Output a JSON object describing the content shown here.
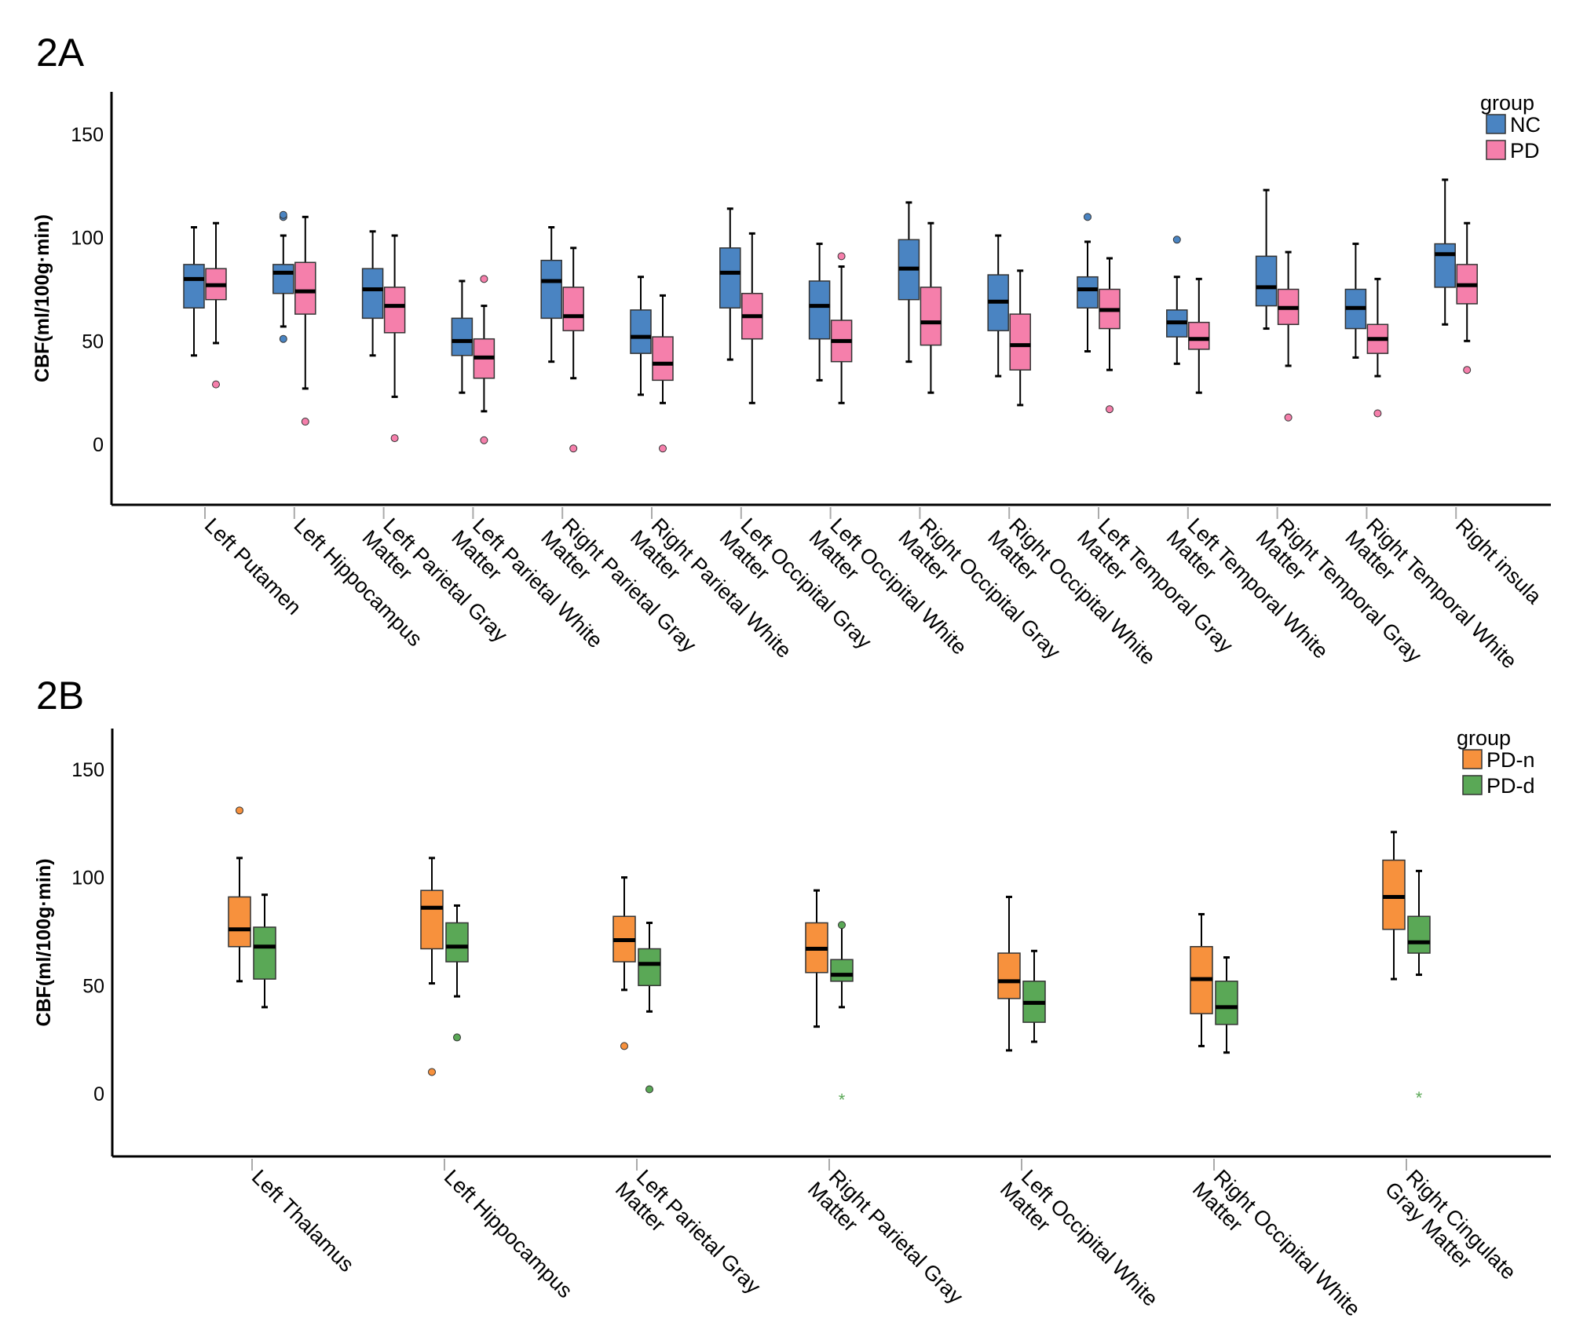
{
  "chart_data": [
    {
      "type": "box",
      "panel_label": "2A",
      "ylabel": "CBF(ml/100g·min)",
      "xlabel": "",
      "ylim": [
        -28,
        170
      ],
      "yticks": [
        0,
        50,
        100,
        150
      ],
      "legend": {
        "title": "group",
        "position": "top-right"
      },
      "series": [
        {
          "name": "NC",
          "color": "#4a84c2"
        },
        {
          "name": "PD",
          "color": "#f57fab"
        }
      ],
      "categories": [
        "Left Putamen",
        "Left Hippocampus",
        "Left Parietal Gray Matter",
        "Left Parietal White Matter",
        "Right Parietal Gray Matter",
        "Right Parietal White Matter",
        "Left Occipital Gray Matter",
        "Left Occipital White Matter",
        "Right Occipital Gray Matter",
        "Right Occipital White Matter",
        "Left Temporal Gray Matter",
        "Left Temporal White Matter",
        "Right Temporal Gray Matter",
        "Right Temporal White Matter",
        "Right insula"
      ],
      "label_lines": [
        [
          "Left Putamen"
        ],
        [
          "Left Hippocampus"
        ],
        [
          "Left Parietal Gray",
          "Matter"
        ],
        [
          "Left Parietal White",
          "Matter"
        ],
        [
          "Right Parietal Gray",
          "Matter"
        ],
        [
          "Right Parietal White",
          "Matter"
        ],
        [
          "Left Occipital Gray",
          "Matter"
        ],
        [
          "Left Occipital White",
          "Matter"
        ],
        [
          "Right Occipital Gray",
          "Matter"
        ],
        [
          "Right Occipital White",
          "Matter"
        ],
        [
          "Left Temporal Gray",
          "Matter"
        ],
        [
          "Left Temporal White",
          "Matter"
        ],
        [
          "Right Temporal Gray",
          "Matter"
        ],
        [
          "Right Temporal White",
          "Matter"
        ],
        [
          "Right insula"
        ]
      ],
      "boxes": [
        [
          {
            "min": 43,
            "q1": 66,
            "median": 80,
            "q3": 87,
            "max": 105,
            "outliers": []
          },
          {
            "min": 49,
            "q1": 70,
            "median": 77,
            "q3": 85,
            "max": 107,
            "outliers": [
              29
            ]
          }
        ],
        [
          {
            "min": 57,
            "q1": 73,
            "median": 83,
            "q3": 87,
            "max": 101,
            "outliers": [
              110,
              111,
              51
            ]
          },
          {
            "min": 27,
            "q1": 63,
            "median": 74,
            "q3": 88,
            "max": 110,
            "outliers": [
              11
            ]
          }
        ],
        [
          {
            "min": 43,
            "q1": 61,
            "median": 75,
            "q3": 85,
            "max": 103,
            "outliers": []
          },
          {
            "min": 23,
            "q1": 54,
            "median": 67,
            "q3": 76,
            "max": 101,
            "outliers": [
              3
            ]
          }
        ],
        [
          {
            "min": 25,
            "q1": 43,
            "median": 50,
            "q3": 61,
            "max": 79,
            "outliers": []
          },
          {
            "min": 16,
            "q1": 32,
            "median": 42,
            "q3": 51,
            "max": 67,
            "outliers": [
              80,
              2
            ]
          }
        ],
        [
          {
            "min": 40,
            "q1": 61,
            "median": 79,
            "q3": 89,
            "max": 105,
            "outliers": []
          },
          {
            "min": 32,
            "q1": 55,
            "median": 62,
            "q3": 76,
            "max": 95,
            "outliers": [
              -2
            ]
          }
        ],
        [
          {
            "min": 24,
            "q1": 44,
            "median": 52,
            "q3": 65,
            "max": 81,
            "outliers": []
          },
          {
            "min": 20,
            "q1": 31,
            "median": 39,
            "q3": 52,
            "max": 72,
            "outliers": [
              -2
            ]
          }
        ],
        [
          {
            "min": 41,
            "q1": 66,
            "median": 83,
            "q3": 95,
            "max": 114,
            "outliers": []
          },
          {
            "min": 20,
            "q1": 51,
            "median": 62,
            "q3": 73,
            "max": 102,
            "outliers": []
          }
        ],
        [
          {
            "min": 31,
            "q1": 51,
            "median": 67,
            "q3": 79,
            "max": 97,
            "outliers": []
          },
          {
            "min": 20,
            "q1": 40,
            "median": 50,
            "q3": 60,
            "max": 86,
            "outliers": [
              91
            ]
          }
        ],
        [
          {
            "min": 40,
            "q1": 70,
            "median": 85,
            "q3": 99,
            "max": 117,
            "outliers": []
          },
          {
            "min": 25,
            "q1": 48,
            "median": 59,
            "q3": 76,
            "max": 107,
            "outliers": []
          }
        ],
        [
          {
            "min": 33,
            "q1": 55,
            "median": 69,
            "q3": 82,
            "max": 101,
            "outliers": []
          },
          {
            "min": 19,
            "q1": 36,
            "median": 48,
            "q3": 63,
            "max": 84,
            "outliers": []
          }
        ],
        [
          {
            "min": 45,
            "q1": 66,
            "median": 75,
            "q3": 81,
            "max": 98,
            "outliers": [
              110
            ]
          },
          {
            "min": 36,
            "q1": 56,
            "median": 65,
            "q3": 75,
            "max": 90,
            "outliers": [
              17
            ]
          }
        ],
        [
          {
            "min": 39,
            "q1": 52,
            "median": 59,
            "q3": 65,
            "max": 81,
            "outliers": [
              99
            ]
          },
          {
            "min": 25,
            "q1": 46,
            "median": 51,
            "q3": 59,
            "max": 80,
            "outliers": []
          }
        ],
        [
          {
            "min": 56,
            "q1": 67,
            "median": 76,
            "q3": 91,
            "max": 123,
            "outliers": []
          },
          {
            "min": 38,
            "q1": 58,
            "median": 66,
            "q3": 75,
            "max": 93,
            "outliers": [
              13
            ]
          }
        ],
        [
          {
            "min": 42,
            "q1": 56,
            "median": 66,
            "q3": 75,
            "max": 97,
            "outliers": []
          },
          {
            "min": 33,
            "q1": 44,
            "median": 51,
            "q3": 58,
            "max": 80,
            "outliers": [
              15
            ]
          }
        ],
        [
          {
            "min": 58,
            "q1": 76,
            "median": 92,
            "q3": 97,
            "max": 128,
            "outliers": []
          },
          {
            "min": 50,
            "q1": 68,
            "median": 77,
            "q3": 87,
            "max": 107,
            "outliers": [
              36
            ]
          }
        ]
      ]
    },
    {
      "type": "box",
      "panel_label": "2B",
      "ylabel": "CBF(ml/100g·min)",
      "xlabel": "",
      "ylim": [
        -23,
        175
      ],
      "yticks": [
        0,
        50,
        100,
        150
      ],
      "legend": {
        "title": "group",
        "position": "top-right"
      },
      "series": [
        {
          "name": "PD-n",
          "color": "#f7913d"
        },
        {
          "name": "PD-d",
          "color": "#5aa856"
        }
      ],
      "categories": [
        "Left Thalamus",
        "Left Hippocampus",
        "Left Parietal Gray Matter",
        "Right Parietal Gray Matter",
        "Left Occipital White Matter",
        "Right Occipital White Matter",
        "Right Cingulate Gray Matter"
      ],
      "label_lines": [
        [
          "Left Thalamus"
        ],
        [
          "Left Hippocampus"
        ],
        [
          "Left Parietal Gray",
          "Matter"
        ],
        [
          "Right Parietal Gray",
          "Matter"
        ],
        [
          "Left Occipital White",
          "Matter"
        ],
        [
          "Right Occipital White",
          "Matter"
        ],
        [
          "Right Cingulate",
          "Gray Matter"
        ]
      ],
      "boxes": [
        [
          {
            "min": 52,
            "q1": 68,
            "median": 76,
            "q3": 91,
            "max": 109,
            "outliers": [
              131
            ]
          },
          {
            "min": 40,
            "q1": 53,
            "median": 68,
            "q3": 77,
            "max": 92,
            "outliers": []
          }
        ],
        [
          {
            "min": 51,
            "q1": 67,
            "median": 86,
            "q3": 94,
            "max": 109,
            "outliers": [
              10
            ]
          },
          {
            "min": 45,
            "q1": 61,
            "median": 68,
            "q3": 79,
            "max": 87,
            "outliers": [
              26
            ]
          }
        ],
        [
          {
            "min": 48,
            "q1": 61,
            "median": 71,
            "q3": 82,
            "max": 100,
            "outliers": [
              22
            ]
          },
          {
            "min": 38,
            "q1": 50,
            "median": 60,
            "q3": 67,
            "max": 79,
            "outliers": [
              2
            ]
          }
        ],
        [
          {
            "min": 31,
            "q1": 56,
            "median": 67,
            "q3": 79,
            "max": 94,
            "outliers": []
          },
          {
            "min": 40,
            "q1": 52,
            "median": 55,
            "q3": 62,
            "max": 78,
            "outliers": [
              78
            ],
            "extremes": [
              -2
            ]
          }
        ],
        [
          {
            "min": 20,
            "q1": 44,
            "median": 52,
            "q3": 65,
            "max": 91,
            "outliers": []
          },
          {
            "min": 24,
            "q1": 33,
            "median": 42,
            "q3": 52,
            "max": 66,
            "outliers": []
          }
        ],
        [
          {
            "min": 22,
            "q1": 37,
            "median": 53,
            "q3": 68,
            "max": 83,
            "outliers": []
          },
          {
            "min": 19,
            "q1": 32,
            "median": 40,
            "q3": 52,
            "max": 63,
            "outliers": []
          }
        ],
        [
          {
            "min": 53,
            "q1": 76,
            "median": 91,
            "q3": 108,
            "max": 121,
            "outliers": []
          },
          {
            "min": 55,
            "q1": 65,
            "median": 70,
            "q3": 82,
            "max": 103,
            "outliers": [],
            "extremes": [
              -1
            ]
          }
        ]
      ]
    }
  ]
}
